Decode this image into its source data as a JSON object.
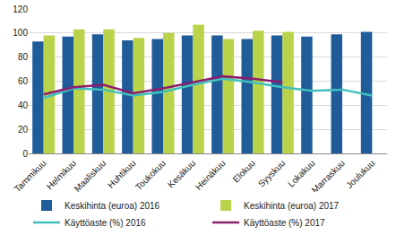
{
  "chart_data": {
    "type": "bar",
    "categories": [
      "Tammikuu",
      "Helmikuu",
      "Maaliskuu",
      "Huhtikuu",
      "Toukokuu",
      "Kesäkuu",
      "Heinäkuu",
      "Elokuu",
      "Syyskuu",
      "Lokakuu",
      "Marraskuu",
      "Joulukuu"
    ],
    "series": [
      {
        "name": "Keskihinta (euroa) 2016",
        "type": "bar",
        "color": "#1f5c99",
        "values": [
          93,
          97,
          99,
          94,
          95,
          98,
          98,
          95,
          98,
          97,
          99,
          101
        ]
      },
      {
        "name": "Keskihinta (euroa) 2017",
        "type": "bar",
        "color": "#b9d34b",
        "values": [
          98,
          103,
          103,
          96,
          100,
          107,
          95,
          102,
          101,
          null,
          null,
          null
        ]
      },
      {
        "name": "Käyttöaste (%) 2016",
        "type": "line",
        "color": "#40c0bd",
        "values": [
          46,
          54,
          53,
          48,
          51,
          57,
          62,
          59,
          55,
          52,
          53,
          48
        ]
      },
      {
        "name": "Käyttöaste (%) 2017",
        "type": "line",
        "color": "#8b1e6e",
        "values": [
          49,
          55,
          57,
          50,
          54,
          59,
          64,
          62,
          59,
          null,
          null,
          null
        ]
      }
    ],
    "ylim": [
      0,
      120
    ],
    "yticks": [
      0,
      20,
      40,
      60,
      80,
      100,
      120
    ],
    "grid": true,
    "legend": "bottom"
  }
}
